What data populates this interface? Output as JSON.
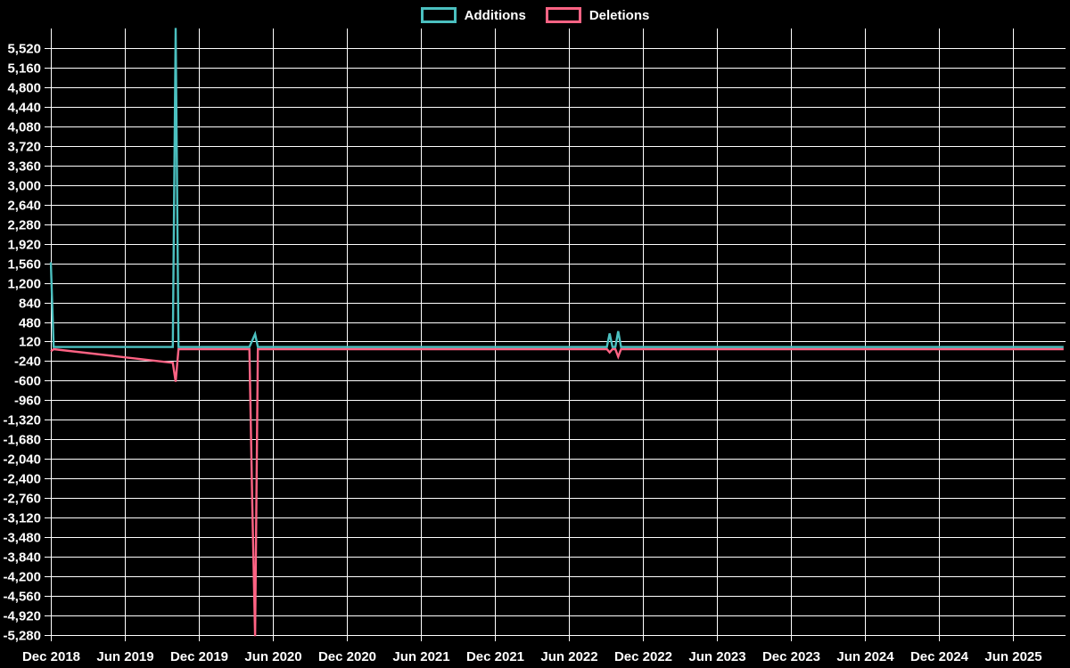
{
  "page": {
    "background": "#000000",
    "text_color": "#ffffff",
    "grid_color": "#ffffff"
  },
  "legend": {
    "position": "top-center",
    "items": [
      {
        "label": "Additions",
        "color": "#4bc0c0"
      },
      {
        "label": "Deletions",
        "color": "#ff6384"
      }
    ]
  },
  "chart_data": {
    "type": "line",
    "title": "",
    "xlabel": "",
    "ylabel": "",
    "grid": true,
    "x_tick_labels": [
      "Dec 2018",
      "Jun 2019",
      "Dec 2019",
      "Jun 2020",
      "Dec 2020",
      "Jun 2021",
      "Dec 2021",
      "Jun 2022",
      "Dec 2022",
      "Jun 2023",
      "Dec 2023",
      "Jun 2024",
      "Dec 2024",
      "Jun 2025"
    ],
    "y_tick_values": [
      5520,
      5160,
      4800,
      4440,
      4080,
      3720,
      3360,
      3000,
      2640,
      2280,
      1920,
      1560,
      1200,
      840,
      480,
      120,
      -240,
      -600,
      -960,
      -1320,
      -1680,
      -2040,
      -2400,
      -2760,
      -3120,
      -3480,
      -3840,
      -4200,
      -4560,
      -4920,
      -5280
    ],
    "ylim": [
      -5280,
      5880
    ],
    "x_start": "2018-12-02",
    "x_end": "2025-10-05",
    "series": [
      {
        "name": "Additions",
        "color": "#4bc0c0",
        "baseline": 0,
        "points": [
          [
            "2018-12-02",
            1560
          ],
          [
            "2018-12-09",
            0
          ],
          [
            "2019-09-29",
            0
          ],
          [
            "2019-10-06",
            5870
          ],
          [
            "2019-10-13",
            0
          ],
          [
            "2020-04-05",
            0
          ],
          [
            "2020-04-19",
            240
          ],
          [
            "2020-04-26",
            0
          ],
          [
            "2022-09-04",
            0
          ],
          [
            "2022-09-11",
            250
          ],
          [
            "2022-09-18",
            0
          ],
          [
            "2022-09-25",
            0
          ],
          [
            "2022-10-02",
            290
          ],
          [
            "2022-10-09",
            0
          ],
          [
            "2025-10-05",
            0
          ]
        ]
      },
      {
        "name": "Deletions",
        "color": "#ff6384",
        "baseline": 0,
        "points": [
          [
            "2018-12-02",
            -40
          ],
          [
            "2018-12-09",
            0
          ],
          [
            "2019-09-29",
            -250
          ],
          [
            "2019-10-06",
            -600
          ],
          [
            "2019-10-13",
            0
          ],
          [
            "2020-04-05",
            0
          ],
          [
            "2020-04-12",
            -2830
          ],
          [
            "2020-04-19",
            -5280
          ],
          [
            "2020-04-26",
            0
          ],
          [
            "2022-09-04",
            0
          ],
          [
            "2022-09-11",
            -60
          ],
          [
            "2022-09-18",
            0
          ],
          [
            "2022-09-25",
            0
          ],
          [
            "2022-10-02",
            -140
          ],
          [
            "2022-10-09",
            0
          ],
          [
            "2025-10-05",
            0
          ]
        ]
      }
    ]
  }
}
